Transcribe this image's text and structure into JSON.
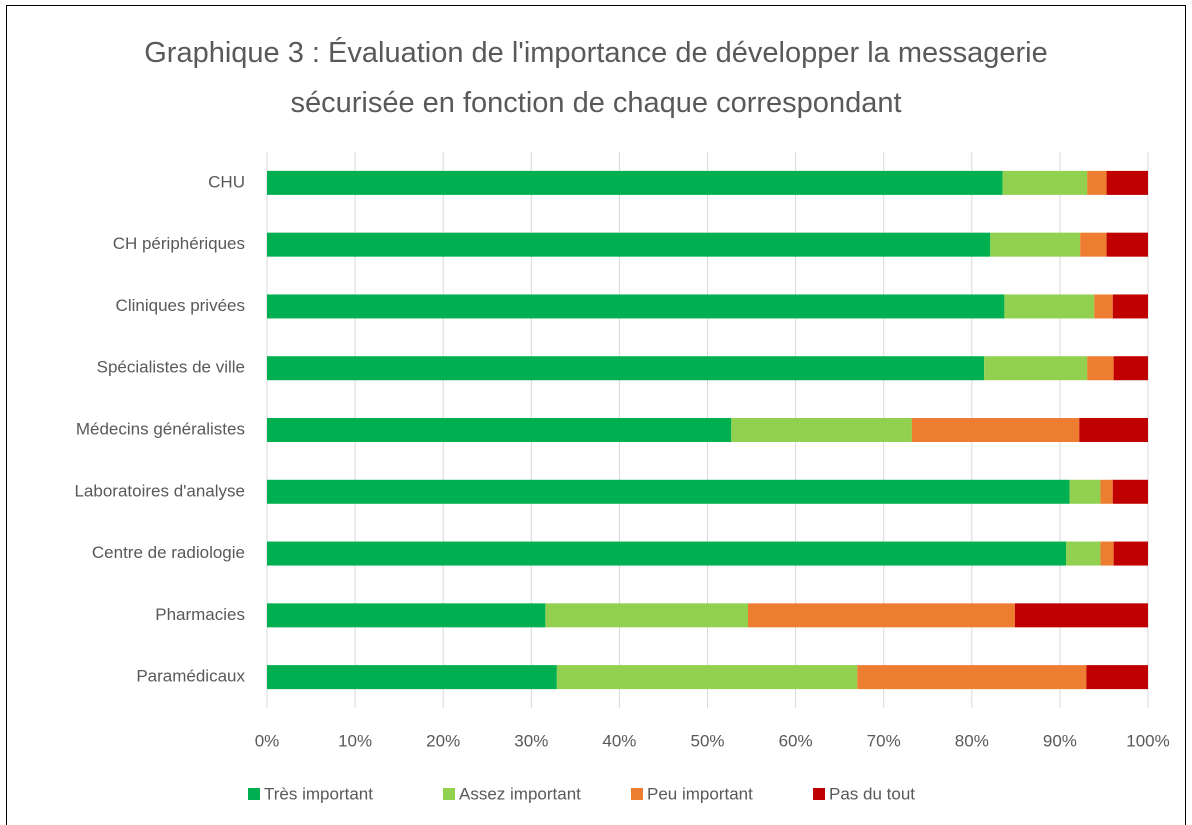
{
  "chart_data": {
    "type": "stacked_bar_horizontal",
    "title": "Graphique 3 : Évaluation de l'importance de développer la messagerie sécurisée en fonction de chaque correspondant",
    "categories": [
      "CHU",
      "CH périphériques",
      "Cliniques privées",
      "Spécialistes de ville",
      "Médecins généralistes",
      "Laboratoires d'analyse",
      "Centre de radiologie",
      "Pharmacies",
      "Paramédicaux"
    ],
    "series": [
      {
        "name": "Très important",
        "color": "#00b050",
        "values": [
          83.5,
          82.1,
          83.7,
          81.4,
          52.7,
          91.1,
          90.7,
          31.6,
          32.9
        ]
      },
      {
        "name": "Assez important",
        "color": "#92d050",
        "values": [
          9.6,
          10.2,
          10.2,
          11.7,
          20.5,
          3.5,
          3.9,
          23.0,
          34.1
        ]
      },
      {
        "name": "Peu important",
        "color": "#ed7d31",
        "values": [
          2.2,
          3.0,
          2.1,
          3.0,
          19.0,
          1.4,
          1.5,
          30.3,
          26.0
        ]
      },
      {
        "name": "Pas du tout",
        "color": "#c00000",
        "values": [
          4.7,
          4.7,
          4.0,
          3.9,
          7.8,
          4.0,
          3.9,
          15.1,
          7.0
        ]
      }
    ],
    "xlim": [
      0,
      100
    ],
    "xticks": [
      {
        "value": 0,
        "label": "0%"
      },
      {
        "value": 10,
        "label": "10%"
      },
      {
        "value": 20,
        "label": "20%"
      },
      {
        "value": 30,
        "label": "30%"
      },
      {
        "value": 40,
        "label": "40%"
      },
      {
        "value": 50,
        "label": "50%"
      },
      {
        "value": 60,
        "label": "60%"
      },
      {
        "value": 70,
        "label": "70%"
      },
      {
        "value": 80,
        "label": "80%"
      },
      {
        "value": 90,
        "label": "90%"
      },
      {
        "value": 100,
        "label": "100%"
      }
    ],
    "grid": true,
    "legend": "bottom"
  }
}
